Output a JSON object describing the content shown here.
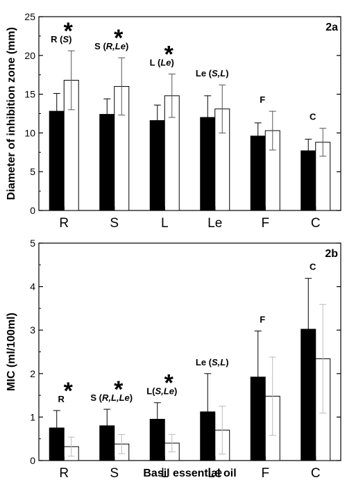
{
  "colors": {
    "series_dark": "#000000",
    "series_light": "#ffffff",
    "error_dark": "#000000",
    "error_light": "#555555",
    "error_light_b": "#bbbbbb"
  },
  "chart_data": [
    {
      "type": "bar",
      "panel_label": "2a",
      "ylabel": "Diameter of inhibition zone (mm)",
      "xlabel": "",
      "ylim": [
        0,
        25
      ],
      "yticks": [
        0,
        5,
        10,
        15,
        20,
        25
      ],
      "grid": false,
      "categories": [
        "R",
        "S",
        "L",
        "Le",
        "F",
        "C"
      ],
      "series": [
        {
          "values": [
            12.8,
            12.4,
            11.6,
            12.0,
            9.6,
            7.7
          ],
          "errors": [
            2.3,
            2.0,
            2.0,
            2.8,
            1.7,
            1.5
          ]
        },
        {
          "values": [
            16.8,
            16.0,
            14.8,
            13.1,
            10.3,
            8.8
          ],
          "errors": [
            3.8,
            3.7,
            2.8,
            3.1,
            2.5,
            1.8
          ]
        }
      ],
      "annotations": [
        {
          "category": "R",
          "text": "R (",
          "italic": "S",
          "close": ")",
          "star": true
        },
        {
          "category": "S",
          "text": "S (",
          "italic": "R,Le",
          "close": ")",
          "star": true
        },
        {
          "category": "L",
          "text": "L (",
          "italic": "Le",
          "close": ")",
          "star": true
        },
        {
          "category": "Le",
          "text": "Le (",
          "italic": "S,L",
          "close": ")",
          "star": false
        },
        {
          "category": "F",
          "text": "F",
          "italic": "",
          "close": "",
          "star": false
        },
        {
          "category": "C",
          "text": "C",
          "italic": "",
          "close": "",
          "star": false
        }
      ]
    },
    {
      "type": "bar",
      "panel_label": "2b",
      "ylabel": "MIC (ml/100ml)",
      "xlabel": "Basil essential oil",
      "ylim": [
        0,
        5
      ],
      "yticks": [
        0,
        1,
        2,
        3,
        4,
        5
      ],
      "grid": false,
      "categories": [
        "R",
        "S",
        "L",
        "Le",
        "F",
        "C"
      ],
      "series": [
        {
          "values": [
            0.75,
            0.8,
            0.95,
            1.12,
            1.92,
            3.02
          ],
          "errors": [
            0.4,
            0.38,
            0.38,
            0.88,
            1.06,
            1.17
          ]
        },
        {
          "values": [
            0.32,
            0.38,
            0.4,
            0.7,
            1.48,
            2.34
          ],
          "errors": [
            0.22,
            0.22,
            0.2,
            0.55,
            0.9,
            1.25
          ]
        }
      ],
      "annotations": [
        {
          "category": "R",
          "text": "R",
          "italic": "",
          "close": "",
          "star": true
        },
        {
          "category": "S",
          "text": "S (",
          "italic": "R,L,Le",
          "close": ")",
          "star": true
        },
        {
          "category": "L",
          "text": "L(",
          "italic": "S,Le",
          "close": ")",
          "star": true
        },
        {
          "category": "Le",
          "text": "Le (",
          "italic": "S,L",
          "close": ")",
          "star": false
        },
        {
          "category": "F",
          "text": "F",
          "italic": "",
          "close": "",
          "star": false
        },
        {
          "category": "C",
          "text": "C",
          "italic": "",
          "close": "",
          "star": false
        }
      ]
    }
  ]
}
